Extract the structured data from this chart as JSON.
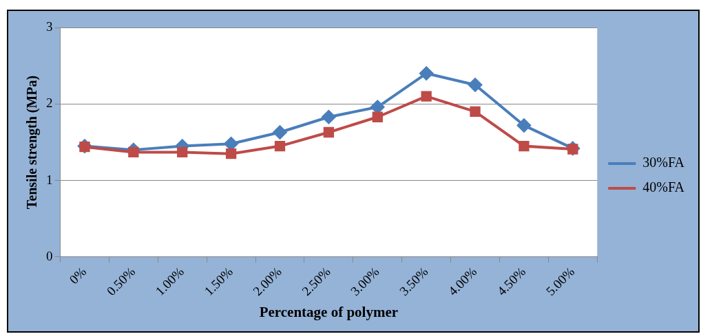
{
  "chart_data": {
    "type": "line",
    "xlabel": "Percentage of polymer",
    "ylabel": "Tensile strength (MPa)",
    "categories": [
      "0%",
      "0.50%",
      "1.00%",
      "1.50%",
      "2.00%",
      "2.50%",
      "3.00%",
      "3.50%",
      "4.00%",
      "4.50%",
      "5.00%"
    ],
    "series": [
      {
        "name": "30%FA",
        "color": "#4a7ebb",
        "marker": "diamond",
        "values": [
          1.45,
          1.4,
          1.45,
          1.48,
          1.63,
          1.83,
          1.96,
          2.4,
          2.25,
          1.72,
          1.42
        ]
      },
      {
        "name": "40%FA",
        "color": "#be4b48",
        "marker": "square",
        "values": [
          1.44,
          1.37,
          1.37,
          1.35,
          1.45,
          1.63,
          1.83,
          2.1,
          1.9,
          1.45,
          1.41
        ]
      }
    ],
    "ylim": [
      0,
      3
    ],
    "yticks": [
      0,
      1,
      2,
      3
    ],
    "grid": "y",
    "legend": "right",
    "line_style": "solid"
  }
}
